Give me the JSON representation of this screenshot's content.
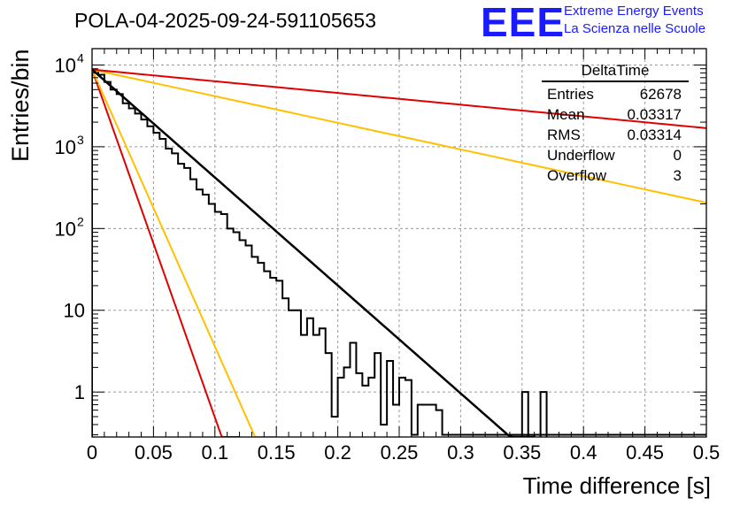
{
  "title": "POLA-04-2025-09-24-591105653",
  "logo": {
    "text": "EEE",
    "line1": "Extreme Energy Events",
    "line2": "La Scienza nelle Scuole",
    "color": "#1a1aff"
  },
  "stats": {
    "title": "DeltaTime",
    "rows": [
      {
        "label": "Entries",
        "value": "62678"
      },
      {
        "label": "Mean",
        "value": "0.03317"
      },
      {
        "label": "RMS",
        "value": "0.03314"
      },
      {
        "label": "Underflow",
        "value": "0"
      },
      {
        "label": "Overflow",
        "value": "3"
      }
    ]
  },
  "chart_data": {
    "type": "line",
    "title": "POLA-04-2025-09-24-591105653",
    "xlabel": "Time difference [s]",
    "ylabel": "Entries/bin",
    "xlim": [
      0,
      0.5
    ],
    "ylim_log10": [
      -0.55,
      4.2
    ],
    "x_ticks": [
      "0",
      "0.05",
      "0.1",
      "0.15",
      "0.2",
      "0.25",
      "0.3",
      "0.35",
      "0.4",
      "0.45",
      "0.5"
    ],
    "y_ticks": [
      {
        "value": 1,
        "label": "1"
      },
      {
        "value": 10,
        "label": "10"
      },
      {
        "value": 100,
        "label": "10",
        "exp": "2"
      },
      {
        "value": 1000,
        "label": "10",
        "exp": "3"
      },
      {
        "value": 10000,
        "label": "10",
        "exp": "4"
      }
    ],
    "grid": true,
    "histogram": {
      "name": "DeltaTime",
      "bin_width": 0.005,
      "color": "#000000",
      "values": [
        8500,
        7600,
        6200,
        5000,
        4400,
        3400,
        2950,
        2550,
        2150,
        1780,
        1480,
        1250,
        950,
        830,
        620,
        550,
        400,
        300,
        260,
        200,
        160,
        150,
        100,
        90,
        72,
        62,
        45,
        38,
        30,
        25,
        23,
        14,
        10,
        10,
        5,
        8,
        5,
        6,
        3,
        0.5,
        1.5,
        2,
        4,
        1.7,
        1.2,
        1.5,
        3,
        0.4,
        2.4,
        0.7,
        1.5,
        1.4,
        0.3,
        0.7,
        0.7,
        0.7,
        0.6,
        0.3,
        0.3,
        0.3,
        0.3,
        0.3,
        0.3,
        0.3,
        0.3,
        0.3,
        0.3,
        0.3,
        0.3,
        0.3,
        0.3,
        0.3,
        0.3,
        0.3,
        0.3,
        0.3,
        0.3,
        0.3,
        0.3,
        0.3,
        0.3,
        0.3,
        0.3,
        0.3,
        0.3,
        0.3,
        0.3,
        0.3,
        0.3,
        0.3,
        0.3,
        0.3,
        0.3,
        0.3,
        0.3,
        0.3,
        0.3,
        0.3,
        0.3,
        0.3
      ],
      "extra_bins": [
        {
          "x": 0.35,
          "value": 1
        },
        {
          "x": 0.355,
          "value": 0.3
        },
        {
          "x": 0.365,
          "value": 1
        }
      ]
    },
    "series": [
      {
        "name": "fit",
        "color": "#000000",
        "width": 2.5,
        "A": 8800,
        "slope": -30.4,
        "x_end": 0.36
      },
      {
        "name": "red-steep",
        "color": "#e00000",
        "width": 2,
        "A": 8800,
        "slope": -98,
        "x_end": 0.12
      },
      {
        "name": "orange-steep",
        "color": "#ffc000",
        "width": 2,
        "A": 8800,
        "slope": -78,
        "x_end": 0.15
      },
      {
        "name": "orange-shallow",
        "color": "#ffc000",
        "width": 2,
        "A": 8800,
        "slope": -7.5,
        "x_end": 0.5
      },
      {
        "name": "red-shallow",
        "color": "#e00000",
        "width": 2,
        "A": 8800,
        "slope": -3.3,
        "x_end": 0.5
      }
    ]
  }
}
